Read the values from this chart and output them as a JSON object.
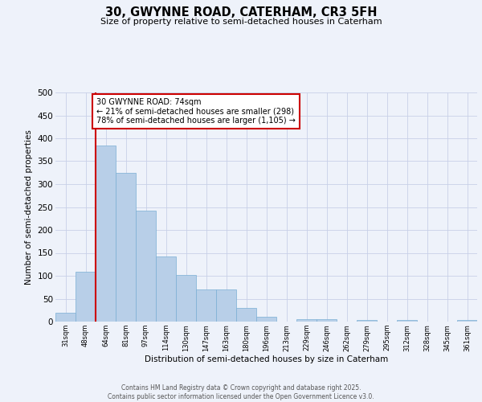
{
  "title_line1": "30, GWYNNE ROAD, CATERHAM, CR3 5FH",
  "title_line2": "Size of property relative to semi-detached houses in Caterham",
  "xlabel": "Distribution of semi-detached houses by size in Caterham",
  "ylabel": "Number of semi-detached properties",
  "bar_labels": [
    "31sqm",
    "48sqm",
    "64sqm",
    "81sqm",
    "97sqm",
    "114sqm",
    "130sqm",
    "147sqm",
    "163sqm",
    "180sqm",
    "196sqm",
    "213sqm",
    "229sqm",
    "246sqm",
    "262sqm",
    "279sqm",
    "295sqm",
    "312sqm",
    "328sqm",
    "345sqm",
    "361sqm"
  ],
  "bar_values": [
    20,
    108,
    384,
    325,
    242,
    142,
    102,
    70,
    70,
    30,
    10,
    0,
    6,
    6,
    0,
    3,
    0,
    3,
    0,
    0,
    3
  ],
  "bar_color": "#b8cfe8",
  "bar_edge_color": "#7aafd4",
  "vline_color": "#cc0000",
  "vline_x_index": 1.5,
  "annotation_text": "30 GWYNNE ROAD: 74sqm\n← 21% of semi-detached houses are smaller (298)\n78% of semi-detached houses are larger (1,105) →",
  "annotation_box_color": "#ffffff",
  "annotation_box_edge": "#cc0000",
  "ylim": [
    0,
    500
  ],
  "yticks": [
    0,
    50,
    100,
    150,
    200,
    250,
    300,
    350,
    400,
    450,
    500
  ],
  "footer_text": "Contains HM Land Registry data © Crown copyright and database right 2025.\nContains public sector information licensed under the Open Government Licence v3.0.",
  "background_color": "#eef2fa",
  "grid_color": "#c8d0e8"
}
